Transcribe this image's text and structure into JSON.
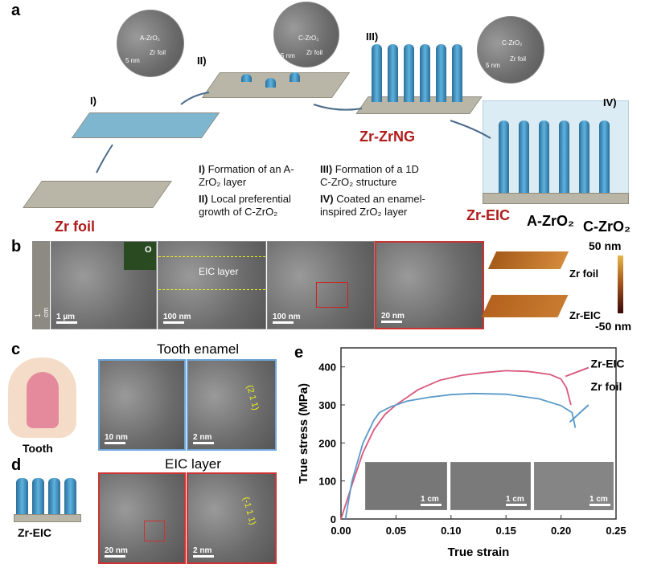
{
  "panel_labels": [
    "a",
    "b",
    "c",
    "d",
    "e"
  ],
  "panel_a": {
    "steps": [
      "I)",
      "II)",
      "III)",
      "IV)"
    ],
    "names": {
      "zr_foil": "Zr foil",
      "zr_zrng": "Zr-ZrNG",
      "zr_eic": "Zr-EIC"
    },
    "captions": [
      {
        "num": "I)",
        "text": "Formation of an A-ZrO₂ layer"
      },
      {
        "num": "II)",
        "text": "Local preferential growth of C-ZrO₂"
      },
      {
        "num": "III)",
        "text": "Formation of a 1D C-ZrO₂ structure"
      },
      {
        "num": "IV)",
        "text": "Coated an enamel-inspired ZrO₂ layer"
      }
    ],
    "insets": [
      {
        "top": "A-ZrO₂",
        "bottom": "Zr foil",
        "scale": "5 nm"
      },
      {
        "top": "C-ZrO₂",
        "bottom": "Zr foil",
        "scale": "5 nm"
      },
      {
        "top": "C-ZrO₂",
        "bottom": "Zr foil",
        "scale": "5 nm"
      }
    ],
    "arrows": [
      "A-ZrO₂",
      "C-ZrO₂"
    ]
  },
  "panel_b": {
    "scales": [
      "1 cm",
      "1 µm",
      "100 nm",
      "100 nm",
      "20 nm"
    ],
    "map_label": "O",
    "eic_label": "EIC layer",
    "afm_labels": [
      "Zr foil",
      "Zr-EIC"
    ],
    "colorbar": {
      "max": "50 nm",
      "min": "-50 nm"
    }
  },
  "panel_c": {
    "title": "Tooth enamel",
    "tooth": "Tooth",
    "scales": [
      "10 nm",
      "2 nm"
    ],
    "plane": "(2 1 1)"
  },
  "panel_d": {
    "title": "EIC layer",
    "sample": "Zr-EIC",
    "scales": [
      "20 nm",
      "2 nm"
    ],
    "plane": "(-1 1 1)"
  },
  "chart_data": {
    "type": "line",
    "xlabel": "True strain",
    "ylabel": "True stress (MPa)",
    "xlim": [
      0,
      0.25
    ],
    "ylim": [
      0,
      450
    ],
    "xticks": [
      "0.00",
      "0.05",
      "0.10",
      "0.15",
      "0.20",
      "0.25"
    ],
    "yticks": [
      "0",
      "100",
      "200",
      "300",
      "400"
    ],
    "series": [
      {
        "name": "Zr-EIC",
        "color": "#d9587c",
        "x": [
          0,
          0.01,
          0.02,
          0.03,
          0.04,
          0.05,
          0.07,
          0.09,
          0.11,
          0.13,
          0.15,
          0.17,
          0.19,
          0.2,
          0.205,
          0.209
        ],
        "y": [
          0,
          90,
          175,
          235,
          275,
          300,
          340,
          365,
          378,
          385,
          390,
          388,
          380,
          368,
          345,
          300
        ]
      },
      {
        "name": "Zr foil",
        "color": "#5b9ac8",
        "x": [
          0.004,
          0.01,
          0.02,
          0.03,
          0.035,
          0.045,
          0.06,
          0.08,
          0.1,
          0.12,
          0.15,
          0.18,
          0.2,
          0.21,
          0.213
        ],
        "y": [
          0,
          100,
          200,
          260,
          280,
          295,
          310,
          320,
          327,
          330,
          328,
          316,
          298,
          280,
          240
        ]
      }
    ],
    "inset_scales": [
      "1 cm",
      "1 cm",
      "1 cm"
    ]
  }
}
